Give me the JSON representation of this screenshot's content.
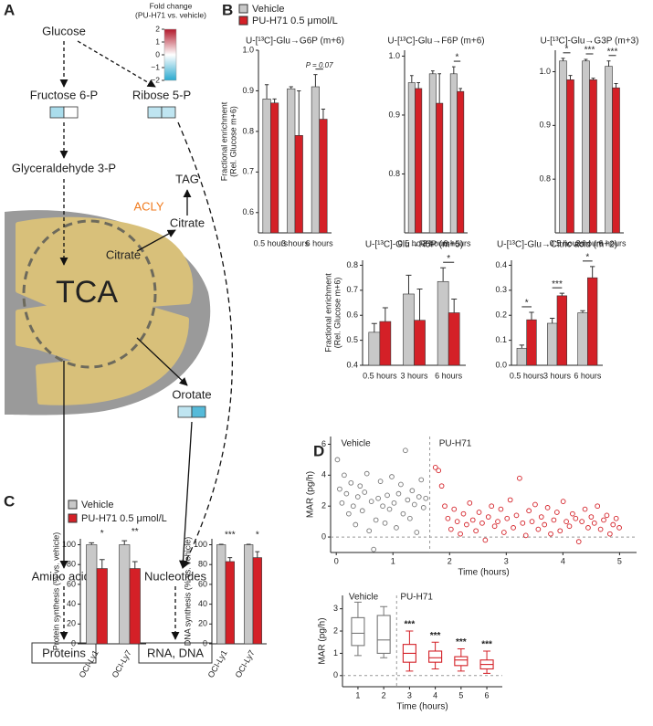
{
  "panels": {
    "a": "A",
    "b": "B",
    "c": "C",
    "d": "D"
  },
  "diagram": {
    "glucose": "Glucose",
    "glyceraldehyde": "Glyceraldehyde 3-P",
    "tag": "TAG",
    "acly": "ACLY",
    "citrate_cyto": "Citrate",
    "citrate_mito": "Citrate",
    "tca": "TCA",
    "amino_acids": "Amino acids",
    "nucleotides": "Nucleotides",
    "proteins": "Proteins",
    "rna_dna": "RNA, DNA",
    "metabolites": [
      {
        "label": "Fructose 6-P",
        "fold_change": [
          -0.8,
          0
        ]
      },
      {
        "label": "Ribose 5-P",
        "fold_change": [
          -0.6,
          -0.6
        ]
      },
      {
        "label": "Orotate",
        "fold_change": [
          -0.6,
          -1.6
        ]
      }
    ],
    "colorbar": {
      "title": [
        "Fold change",
        "(PU-H71 vs. vehicle)"
      ],
      "lim": [
        -2,
        2
      ],
      "ticks": [
        2,
        1,
        0,
        {
          "value": -1,
          "label": "−1"
        },
        {
          "value": -2,
          "label": "−2"
        }
      ]
    }
  },
  "chart_data": [
    {
      "type": "bar",
      "title": "U-[¹³C]-Glu→G6P (m+6)",
      "ylabel": [
        "Fractional enrichment",
        "(Rel. Glucose m+6)"
      ],
      "categories": [
        "0.5 hours",
        "3 hours",
        "6 hours"
      ],
      "series": [
        {
          "name": "Vehicle",
          "color": "#c8c8c8",
          "values": [
            0.88,
            0.905,
            0.91
          ],
          "errors": [
            0.035,
            0.005,
            0.03
          ]
        },
        {
          "name": "PU-H71 0.5 μmol/L",
          "color": "#d42027",
          "values": [
            0.87,
            0.79,
            0.83
          ],
          "errors": [
            0.01,
            0.11,
            0.025
          ]
        }
      ],
      "significance": [
        null,
        null,
        "P = 0.07"
      ],
      "ylim": [
        0.55,
        1.0
      ],
      "yticks": [
        0.6,
        0.7,
        0.8,
        0.9,
        {
          "value": 1,
          "label": "1.0"
        }
      ]
    },
    {
      "type": "bar",
      "title": "U-[¹³C]-Glu→F6P (m+6)",
      "categories": [
        "0.5 hours",
        "3 hours",
        "6 hours"
      ],
      "series": [
        {
          "name": "Vehicle",
          "color": "#c8c8c8",
          "values": [
            0.955,
            0.97,
            0.97
          ],
          "errors": [
            0.012,
            0.005,
            0.012
          ]
        },
        {
          "name": "PU-H71 0.5 μmol/L",
          "color": "#d42027",
          "values": [
            0.945,
            0.92,
            0.94
          ],
          "errors": [
            0.01,
            0.05,
            0.005
          ]
        }
      ],
      "significance": [
        null,
        null,
        "*"
      ],
      "ylim": [
        0.7,
        1.01
      ],
      "yticks": [
        0.8,
        0.9,
        {
          "value": 1,
          "label": "1.0"
        }
      ]
    },
    {
      "type": "bar",
      "title": "U-[¹³C]-Glu→G3P (m+3)",
      "categories": [
        "0.5 hours",
        "3 hours",
        "6 hours"
      ],
      "series": [
        {
          "name": "Vehicle",
          "color": "#c8c8c8",
          "values": [
            1.02,
            1.02,
            1.01
          ],
          "errors": [
            0.005,
            0.003,
            0.01
          ]
        },
        {
          "name": "PU-H71 0.5 μmol/L",
          "color": "#d42027",
          "values": [
            0.985,
            0.985,
            0.97
          ],
          "errors": [
            0.008,
            0.003,
            0.008
          ]
        }
      ],
      "significance": [
        "*",
        "***",
        "***"
      ],
      "ylim": [
        0.7,
        1.04
      ],
      "yticks": [
        0.8,
        0.9,
        {
          "value": 1,
          "label": "1.0"
        }
      ]
    },
    {
      "type": "bar",
      "title": "U-[¹³C]-Glu→R5P (m+5)",
      "ylabel": [
        "Fractional enrichment",
        "(Rel. Glucose m+6)"
      ],
      "categories": [
        "0.5 hours",
        "3 hours",
        "6 hours"
      ],
      "series": [
        {
          "name": "Vehicle",
          "color": "#c8c8c8",
          "values": [
            0.532,
            0.685,
            0.735
          ],
          "errors": [
            0.035,
            0.075,
            0.055
          ]
        },
        {
          "name": "PU-H71 0.5 μmol/L",
          "color": "#d42027",
          "values": [
            0.575,
            0.58,
            0.61
          ],
          "errors": [
            0.055,
            0.125,
            0.055
          ]
        }
      ],
      "significance": [
        null,
        null,
        "*"
      ],
      "ylim": [
        0.4,
        0.82
      ],
      "yticks": [
        0.4,
        0.5,
        0.6,
        0.7,
        0.8
      ]
    },
    {
      "type": "bar",
      "title": "U-[¹³C]-Glu→Citric acid (m+2)",
      "categories": [
        "0.5 hours",
        "3 hours",
        "6 hours"
      ],
      "series": [
        {
          "name": "Vehicle",
          "color": "#c8c8c8",
          "values": [
            0.068,
            0.168,
            0.21
          ],
          "errors": [
            0.013,
            0.02,
            0.008
          ]
        },
        {
          "name": "PU-H71 0.5 μmol/L",
          "color": "#d42027",
          "values": [
            0.182,
            0.278,
            0.35
          ],
          "errors": [
            0.03,
            0.01,
            0.045
          ]
        }
      ],
      "significance": [
        "*",
        "***",
        "*"
      ],
      "ylim": [
        0,
        0.42
      ],
      "yticks": [
        {
          "value": 0,
          "label": "0.0"
        },
        0.1,
        0.2,
        0.3,
        0.4
      ]
    },
    {
      "type": "bar",
      "ylabel": [
        "Protein synthesis (% vs. vehicle)"
      ],
      "categories": [
        "OCI-Ly1",
        "OCI-Ly7"
      ],
      "series": [
        {
          "name": "Vehicle",
          "color": "#c8c8c8",
          "values": [
            100,
            100
          ],
          "errors": [
            2,
            4
          ]
        },
        {
          "name": "PU-H71 0.5 μmol/L",
          "color": "#d42027",
          "values": [
            76,
            76
          ],
          "errors": [
            9,
            7
          ]
        }
      ],
      "significance": [
        "*",
        "**"
      ],
      "ylim": [
        0,
        106
      ],
      "yticks": [
        0,
        20,
        40,
        60,
        80,
        100
      ]
    },
    {
      "type": "bar",
      "ylabel": [
        "DNA synthesis (% vs. vehicle)"
      ],
      "categories": [
        "OCI-Ly1",
        "OCI-Ly7"
      ],
      "series": [
        {
          "name": "Vehicle",
          "color": "#c8c8c8",
          "values": [
            100,
            100
          ],
          "errors": [
            0.5,
            0.5
          ]
        },
        {
          "name": "PU-H71 0.5 μmol/L",
          "color": "#d42027",
          "values": [
            83,
            87
          ],
          "errors": [
            4,
            6
          ]
        }
      ],
      "significance": [
        "***",
        "*"
      ],
      "ylim": [
        0,
        106
      ],
      "yticks": [
        0,
        20,
        40,
        60,
        80,
        100
      ]
    },
    {
      "type": "scatter",
      "ylabel": "MAR (pg/h)",
      "xlabel": "Time (hours)",
      "xlim": [
        -0.1,
        5.3
      ],
      "ylim": [
        -1,
        6.5
      ],
      "xticks": [
        0,
        1,
        2,
        3,
        4,
        5
      ],
      "yticks": [
        0,
        2,
        4,
        6
      ],
      "vline": 1.65,
      "series": [
        {
          "name": "Vehicle",
          "color": "#777777",
          "x": [
            0.02,
            0.06,
            0.1,
            0.14,
            0.18,
            0.22,
            0.26,
            0.3,
            0.34,
            0.38,
            0.42,
            0.46,
            0.5,
            0.54,
            0.58,
            0.62,
            0.66,
            0.7,
            0.74,
            0.78,
            0.82,
            0.86,
            0.9,
            0.94,
            0.98,
            1.02,
            1.06,
            1.1,
            1.14,
            1.18,
            1.22,
            1.26,
            1.3,
            1.34,
            1.38,
            1.42,
            1.46,
            1.5,
            1.54,
            1.58
          ],
          "y": [
            5.0,
            3.1,
            2.2,
            4.0,
            2.8,
            1.5,
            3.5,
            2.0,
            0.8,
            2.6,
            3.3,
            1.7,
            2.9,
            4.1,
            0.4,
            2.3,
            -0.8,
            1.1,
            2.5,
            3.6,
            2.0,
            0.9,
            2.7,
            1.8,
            3.9,
            2.2,
            0.6,
            2.8,
            3.4,
            1.5,
            5.6,
            2.4,
            1.2,
            3.0,
            2.1,
            0.3,
            2.6,
            3.7,
            1.9,
            2.5
          ]
        },
        {
          "name": "PU-H71",
          "color": "#d42027",
          "x": [
            1.75,
            1.805,
            1.86,
            1.915,
            1.97,
            2.025,
            2.08,
            2.135,
            2.19,
            2.245,
            2.3,
            2.355,
            2.41,
            2.465,
            2.52,
            2.575,
            2.63,
            2.685,
            2.74,
            2.795,
            2.85,
            2.905,
            2.96,
            3.015,
            3.07,
            3.125,
            3.18,
            3.235,
            3.29,
            3.345,
            3.4,
            3.455,
            3.51,
            3.565,
            3.62,
            3.675,
            3.73,
            3.785,
            3.84,
            3.895,
            3.95,
            4.005,
            4.06,
            4.115,
            4.17,
            4.225,
            4.28,
            4.335,
            4.39,
            4.445,
            4.5,
            4.555,
            4.61,
            4.665,
            4.72,
            4.775,
            4.83,
            4.885,
            4.94,
            4.995
          ],
          "y": [
            4.5,
            4.3,
            3.3,
            2.0,
            1.2,
            0.5,
            1.8,
            1.0,
            0.2,
            1.5,
            0.8,
            2.2,
            1.1,
            0.4,
            1.6,
            0.9,
            -0.2,
            1.3,
            2.0,
            0.7,
            1.0,
            1.8,
            0.3,
            1.2,
            2.4,
            0.6,
            1.4,
            3.8,
            0.9,
            0.1,
            1.7,
            1.0,
            2.1,
            0.5,
            1.3,
            0.8,
            1.9,
            0.2,
            1.1,
            1.6,
            0.4,
            2.3,
            1.0,
            0.7,
            1.5,
            1.2,
            -0.3,
            1.0,
            1.8,
            0.6,
            1.3,
            0.9,
            2.0,
            0.5,
            1.1,
            1.4,
            0.2,
            0.8,
            1.2,
            0.6
          ]
        }
      ]
    },
    {
      "type": "box",
      "ylabel": "MAR (pg/h)",
      "xlabel": "Time (hours)",
      "xlim": [
        0.4,
        6.6
      ],
      "ylim": [
        -0.5,
        3.6
      ],
      "xticks": [
        1,
        2,
        3,
        4,
        5,
        6
      ],
      "yticks": [
        0,
        1,
        2,
        3
      ],
      "vline": 2.5,
      "series": [
        {
          "name": "Vehicle",
          "color": "#777777",
          "x": [
            1,
            2
          ],
          "min": [
            0.9,
            0.8
          ],
          "q1": [
            1.35,
            1.0
          ],
          "median": [
            1.9,
            1.6
          ],
          "q3": [
            2.6,
            2.7
          ],
          "max": [
            3.3,
            3.1
          ]
        },
        {
          "name": "PU-H71",
          "color": "#d42027",
          "x": [
            3,
            4,
            5,
            6
          ],
          "min": [
            0.2,
            0.3,
            0.2,
            0.1
          ],
          "q1": [
            0.6,
            0.6,
            0.45,
            0.3
          ],
          "median": [
            1.0,
            0.8,
            0.7,
            0.5
          ],
          "q3": [
            1.4,
            1.1,
            0.85,
            0.7
          ],
          "max": [
            2.0,
            1.5,
            1.2,
            1.1
          ],
          "significance": [
            "***",
            "***",
            "***",
            "***"
          ]
        }
      ]
    }
  ]
}
